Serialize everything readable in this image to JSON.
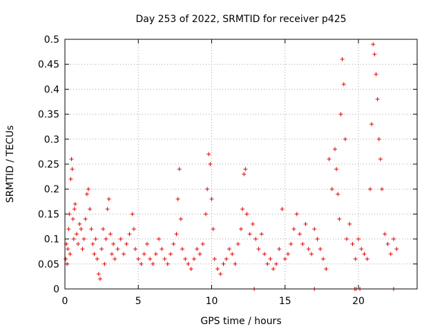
{
  "chart_data": {
    "type": "scatter",
    "title": "Day 253 of 2022, SRMTID for receiver p425",
    "xlabel": "GPS time / hours",
    "ylabel": "SRMTID / TECUs",
    "xlim": [
      0,
      24
    ],
    "ylim": [
      0,
      0.5
    ],
    "xticks": [
      0,
      5,
      10,
      15,
      20
    ],
    "xtick_labels": [
      "0",
      "5",
      "10",
      "15",
      "20"
    ],
    "yticks": [
      0,
      0.05,
      0.1,
      0.15,
      0.2,
      0.25,
      0.3,
      0.35,
      0.4,
      0.45,
      0.5
    ],
    "ytick_labels": [
      "0",
      "0.05",
      "0.1",
      "0.15",
      "0.2",
      "0.25",
      "0.3",
      "0.35",
      "0.4",
      "0.45",
      "0.5"
    ],
    "grid": true,
    "marker": "+",
    "series_color": "#e00000",
    "series": [
      {
        "name": "SRMTID",
        "points": [
          [
            0.05,
            0.06
          ],
          [
            0.1,
            0.09
          ],
          [
            0.15,
            0.05
          ],
          [
            0.2,
            0.08
          ],
          [
            0.25,
            0.12
          ],
          [
            0.3,
            0.15
          ],
          [
            0.35,
            0.07
          ],
          [
            0.4,
            0.22
          ],
          [
            0.45,
            0.26
          ],
          [
            0.5,
            0.24
          ],
          [
            0.55,
            0.14
          ],
          [
            0.6,
            0.1
          ],
          [
            0.65,
            0.16
          ],
          [
            0.7,
            0.17
          ],
          [
            0.8,
            0.11
          ],
          [
            0.9,
            0.09
          ],
          [
            1.0,
            0.13
          ],
          [
            1.1,
            0.12
          ],
          [
            1.2,
            0.08
          ],
          [
            1.3,
            0.1
          ],
          [
            1.4,
            0.14
          ],
          [
            1.5,
            0.19
          ],
          [
            1.6,
            0.2
          ],
          [
            1.7,
            0.16
          ],
          [
            1.8,
            0.12
          ],
          [
            1.9,
            0.09
          ],
          [
            2.0,
            0.07
          ],
          [
            2.1,
            0.1
          ],
          [
            2.2,
            0.06
          ],
          [
            2.3,
            0.03
          ],
          [
            2.4,
            0.02
          ],
          [
            2.5,
            0.08
          ],
          [
            2.6,
            0.12
          ],
          [
            2.7,
            0.05
          ],
          [
            2.8,
            0.1
          ],
          [
            2.9,
            0.16
          ],
          [
            3.0,
            0.18
          ],
          [
            3.1,
            0.11
          ],
          [
            3.2,
            0.07
          ],
          [
            3.3,
            0.09
          ],
          [
            3.4,
            0.06
          ],
          [
            3.6,
            0.08
          ],
          [
            3.8,
            0.1
          ],
          [
            4.0,
            0.07
          ],
          [
            4.2,
            0.09
          ],
          [
            4.4,
            0.11
          ],
          [
            4.6,
            0.15
          ],
          [
            4.7,
            0.12
          ],
          [
            4.8,
            0.08
          ],
          [
            5.0,
            0.06
          ],
          [
            5.2,
            0.05
          ],
          [
            5.4,
            0.07
          ],
          [
            5.6,
            0.09
          ],
          [
            5.8,
            0.06
          ],
          [
            6.0,
            0.05
          ],
          [
            6.2,
            0.07
          ],
          [
            6.4,
            0.1
          ],
          [
            6.6,
            0.08
          ],
          [
            6.8,
            0.06
          ],
          [
            7.0,
            0.05
          ],
          [
            7.2,
            0.07
          ],
          [
            7.4,
            0.09
          ],
          [
            7.6,
            0.11
          ],
          [
            7.7,
            0.18
          ],
          [
            7.8,
            0.24
          ],
          [
            7.9,
            0.14
          ],
          [
            8.0,
            0.08
          ],
          [
            8.2,
            0.06
          ],
          [
            8.4,
            0.05
          ],
          [
            8.6,
            0.04
          ],
          [
            8.8,
            0.06
          ],
          [
            9.0,
            0.08
          ],
          [
            9.2,
            0.07
          ],
          [
            9.4,
            0.09
          ],
          [
            9.6,
            0.15
          ],
          [
            9.7,
            0.2
          ],
          [
            9.8,
            0.27
          ],
          [
            9.9,
            0.25
          ],
          [
            10.0,
            0.18
          ],
          [
            10.1,
            0.12
          ],
          [
            10.2,
            0.06
          ],
          [
            10.4,
            0.04
          ],
          [
            10.6,
            0.03
          ],
          [
            10.8,
            0.05
          ],
          [
            11.0,
            0.06
          ],
          [
            11.2,
            0.08
          ],
          [
            11.4,
            0.07
          ],
          [
            11.6,
            0.05
          ],
          [
            11.8,
            0.09
          ],
          [
            12.0,
            0.12
          ],
          [
            12.1,
            0.16
          ],
          [
            12.2,
            0.23
          ],
          [
            12.3,
            0.24
          ],
          [
            12.4,
            0.15
          ],
          [
            12.6,
            0.11
          ],
          [
            12.8,
            0.13
          ],
          [
            13.0,
            0.1
          ],
          [
            13.2,
            0.08
          ],
          [
            13.4,
            0.11
          ],
          [
            13.6,
            0.07
          ],
          [
            13.8,
            0.05
          ],
          [
            14.0,
            0.06
          ],
          [
            14.2,
            0.04
          ],
          [
            14.4,
            0.05
          ],
          [
            14.6,
            0.08
          ],
          [
            14.8,
            0.16
          ],
          [
            15.0,
            0.06
          ],
          [
            15.2,
            0.07
          ],
          [
            15.4,
            0.09
          ],
          [
            15.6,
            0.12
          ],
          [
            15.8,
            0.15
          ],
          [
            16.0,
            0.11
          ],
          [
            16.2,
            0.09
          ],
          [
            16.4,
            0.13
          ],
          [
            16.6,
            0.08
          ],
          [
            16.8,
            0.07
          ],
          [
            17.0,
            0.12
          ],
          [
            17.2,
            0.1
          ],
          [
            17.4,
            0.08
          ],
          [
            17.6,
            0.06
          ],
          [
            17.8,
            0.04
          ],
          [
            18.0,
            0.26
          ],
          [
            18.2,
            0.2
          ],
          [
            18.4,
            0.28
          ],
          [
            18.5,
            0.24
          ],
          [
            18.6,
            0.19
          ],
          [
            18.7,
            0.14
          ],
          [
            18.8,
            0.35
          ],
          [
            18.9,
            0.46
          ],
          [
            19.0,
            0.41
          ],
          [
            19.1,
            0.3
          ],
          [
            19.2,
            0.1
          ],
          [
            19.4,
            0.13
          ],
          [
            19.6,
            0.09
          ],
          [
            19.8,
            0.06
          ],
          [
            20.0,
            0.1
          ],
          [
            20.2,
            0.08
          ],
          [
            20.4,
            0.07
          ],
          [
            20.6,
            0.06
          ],
          [
            20.8,
            0.2
          ],
          [
            20.9,
            0.33
          ],
          [
            21.0,
            0.49
          ],
          [
            21.1,
            0.47
          ],
          [
            21.2,
            0.43
          ],
          [
            21.3,
            0.38
          ],
          [
            21.4,
            0.3
          ],
          [
            21.5,
            0.26
          ],
          [
            21.6,
            0.2
          ],
          [
            21.8,
            0.11
          ],
          [
            22.0,
            0.09
          ],
          [
            22.2,
            0.07
          ],
          [
            22.4,
            0.1
          ],
          [
            22.6,
            0.08
          ],
          [
            19.75,
            0.0
          ],
          [
            19.85,
            0.0
          ],
          [
            17.0,
            0.0
          ],
          [
            12.9,
            0.0
          ],
          [
            22.4,
            0.0
          ],
          [
            20.1,
            0.0
          ]
        ]
      }
    ]
  }
}
